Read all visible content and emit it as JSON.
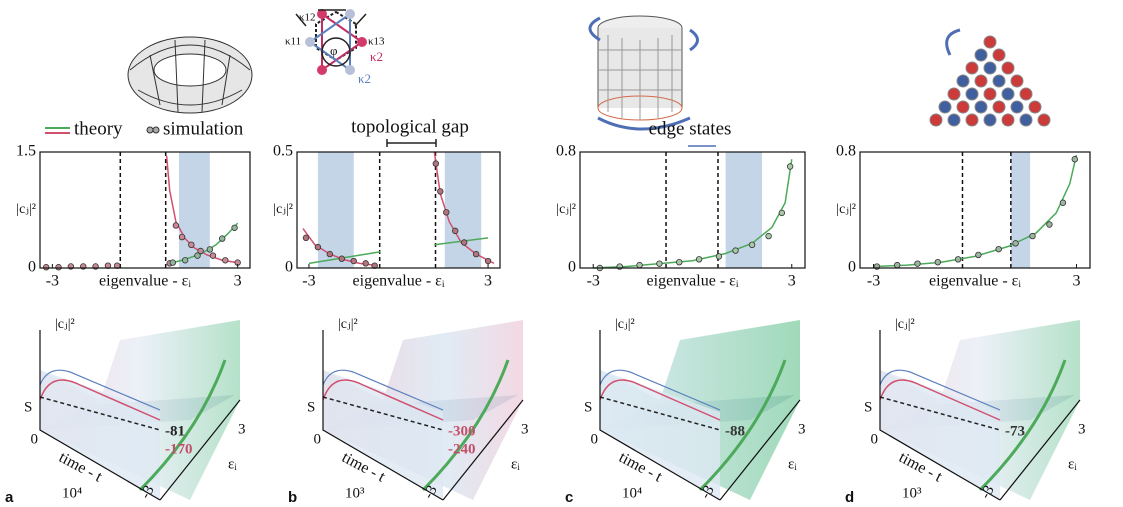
{
  "legend": {
    "theory": "theory",
    "simulation": "simulation"
  },
  "annotations": {
    "gap": "topological gap",
    "edge": "edge states"
  },
  "diagram_labels": {
    "k12": "κ12",
    "k11": "κ11",
    "k13": "κ13",
    "k2a": "κ2",
    "k2b": "κ2",
    "phi": "φ"
  },
  "chart_data": [
    {
      "type": "scatter",
      "x_label": "eigenvalue - εᵢ",
      "y_label": "|cⱼ|²",
      "xlim": [
        -3.4,
        3.4
      ],
      "ylim": [
        0,
        1.5
      ],
      "xticks": [
        -3,
        3
      ],
      "yticks": [
        0,
        1.5
      ],
      "vlines": [
        -0.8,
        0.67
      ],
      "bands": [
        [
          1.1,
          2.1
        ]
      ],
      "series": [
        {
          "kind": "line",
          "color": "#d2506f",
          "x": [
            0.7,
            0.8,
            1.0,
            1.3,
            1.6,
            2.0,
            2.5,
            3.0
          ],
          "values": [
            1.45,
            1.0,
            0.6,
            0.38,
            0.26,
            0.17,
            0.1,
            0.07
          ]
        },
        {
          "kind": "line",
          "color": "#4caa5a",
          "x": [
            0.7,
            1.2,
            1.8,
            2.3,
            2.7,
            3.0
          ],
          "values": [
            0.05,
            0.1,
            0.18,
            0.3,
            0.45,
            0.58
          ]
        },
        {
          "kind": "points",
          "color": "#c98a95",
          "x": [
            -3.2,
            -2.8,
            -2.4,
            -2.0,
            -1.6,
            -1.2,
            -0.9,
            0.8,
            1.0,
            1.2,
            1.5,
            1.8,
            2.2,
            2.6,
            3.0
          ],
          "values": [
            0.01,
            0.01,
            0.02,
            0.02,
            0.02,
            0.03,
            0.03,
            0.06,
            0.55,
            0.4,
            0.3,
            0.22,
            0.16,
            0.1,
            0.07
          ]
        },
        {
          "kind": "points",
          "color": "#8fb89a",
          "x": [
            0.9,
            1.3,
            1.7,
            2.1,
            2.5,
            2.9
          ],
          "values": [
            0.07,
            0.1,
            0.16,
            0.24,
            0.38,
            0.52
          ]
        }
      ]
    },
    {
      "type": "scatter",
      "x_label": "eigenvalue - εᵢ",
      "y_label": "|cⱼ|²",
      "xlim": [
        -3.4,
        3.4
      ],
      "ylim": [
        0,
        0.5
      ],
      "xticks": [
        -3,
        3
      ],
      "yticks": [
        0,
        0.5
      ],
      "vlines": [
        -0.63,
        1.24
      ],
      "bands": [
        [
          -2.7,
          -1.5
        ],
        [
          1.55,
          2.77
        ]
      ],
      "series": [
        {
          "kind": "line",
          "color": "#d2506f",
          "x": [
            -3.2,
            -2.8,
            -2.3,
            -1.8,
            -1.3,
            -0.7
          ],
          "values": [
            0.17,
            0.1,
            0.06,
            0.035,
            0.02,
            0.01
          ]
        },
        {
          "kind": "line",
          "color": "#d2506f",
          "x": [
            1.2,
            1.4,
            1.7,
            2.1,
            2.6,
            3.2
          ],
          "values": [
            0.5,
            0.32,
            0.2,
            0.11,
            0.06,
            0.02
          ]
        },
        {
          "kind": "line",
          "color": "#4caa5a",
          "x": [
            -3.0,
            -0.6
          ],
          "values": [
            0.02,
            0.07
          ]
        },
        {
          "kind": "line",
          "color": "#4caa5a",
          "x": [
            1.2,
            3.0
          ],
          "values": [
            0.1,
            0.13
          ]
        },
        {
          "kind": "points",
          "color": "#b3747f",
          "x": [
            -3.1,
            -2.7,
            -2.3,
            -1.9,
            -1.5,
            -1.1,
            -0.8,
            1.25,
            1.4,
            1.6,
            1.9,
            2.2,
            2.6,
            3.0
          ],
          "values": [
            0.13,
            0.09,
            0.06,
            0.04,
            0.03,
            0.02,
            0.01,
            0.45,
            0.33,
            0.24,
            0.16,
            0.11,
            0.06,
            0.03
          ]
        }
      ]
    },
    {
      "type": "scatter",
      "x_label": "eigenvalue - εᵢ",
      "y_label": "|cⱼ|²",
      "xlim": [
        -3.4,
        3.4
      ],
      "ylim": [
        0,
        0.8
      ],
      "xticks": [
        -3,
        3
      ],
      "yticks": [
        0,
        0.8
      ],
      "vlines": [
        -0.8,
        0.77
      ],
      "bands": [
        [
          1.0,
          2.1
        ]
      ],
      "series": [
        {
          "kind": "line",
          "color": "#4caa5a",
          "x": [
            -3.0,
            -2.0,
            -1.0,
            0.0,
            1.0,
            1.8,
            2.4,
            2.8,
            3.0
          ],
          "values": [
            0.0,
            0.01,
            0.03,
            0.05,
            0.1,
            0.17,
            0.28,
            0.45,
            0.75
          ]
        },
        {
          "kind": "points",
          "color": "#a9c7a9",
          "x": [
            -2.8,
            -2.2,
            -1.6,
            -1.0,
            -0.4,
            0.2,
            0.8,
            1.3,
            1.8,
            2.3,
            2.7,
            2.95
          ],
          "values": [
            0.0,
            0.01,
            0.02,
            0.03,
            0.04,
            0.06,
            0.08,
            0.12,
            0.16,
            0.22,
            0.38,
            0.7
          ]
        }
      ]
    },
    {
      "type": "scatter",
      "x_label": "eigenvalue - εᵢ",
      "y_label": "|cⱼ|²",
      "xlim": [
        -3.4,
        3.4
      ],
      "ylim": [
        0,
        0.8
      ],
      "xticks": [
        -3,
        3
      ],
      "yticks": [
        0,
        0.8
      ],
      "vlines": [
        -0.37,
        1.06
      ],
      "bands": [
        [
          1.06,
          1.63
        ]
      ],
      "series": [
        {
          "kind": "line",
          "color": "#4caa5a",
          "x": [
            -3.0,
            -2.0,
            -1.0,
            0.0,
            1.0,
            1.8,
            2.4,
            2.8,
            3.0
          ],
          "values": [
            0.01,
            0.02,
            0.04,
            0.08,
            0.15,
            0.24,
            0.38,
            0.58,
            0.78
          ]
        },
        {
          "kind": "points",
          "color": "#9bb59f",
          "x": [
            -2.9,
            -2.3,
            -1.7,
            -1.1,
            -0.5,
            0.1,
            0.7,
            1.2,
            1.7,
            2.2,
            2.6,
            2.95
          ],
          "values": [
            0.01,
            0.02,
            0.03,
            0.04,
            0.06,
            0.09,
            0.13,
            0.17,
            0.22,
            0.3,
            0.45,
            0.75
          ]
        }
      ]
    }
  ],
  "surfaces": [
    {
      "letter": "a",
      "y_label": "|cⱼ|²",
      "s_label": "S",
      "t0": "0",
      "x_label": "time - t",
      "t_end": "10⁴",
      "e_label": "εᵢ",
      "e_max": "3",
      "e_min": "-3",
      "values": [
        "-81",
        "-170"
      ],
      "value_colors": [
        "#222",
        "#c2506a"
      ]
    },
    {
      "letter": "b",
      "y_label": "|cⱼ|²",
      "s_label": "S",
      "t0": "0",
      "x_label": "time - t",
      "t_end": "10³",
      "e_label": "εᵢ",
      "e_max": "3",
      "e_min": "-3",
      "values": [
        "-300",
        "-240"
      ],
      "value_colors": [
        "#c2506a",
        "#c2506a"
      ]
    },
    {
      "letter": "c",
      "y_label": "|cⱼ|²",
      "s_label": "S",
      "t0": "0",
      "x_label": "time - t",
      "t_end": "10⁴",
      "e_label": "εᵢ",
      "e_max": "3",
      "e_min": "-3",
      "values": [
        "-88"
      ],
      "value_colors": [
        "#333"
      ]
    },
    {
      "letter": "d",
      "y_label": "|cⱼ|²",
      "s_label": "S",
      "t0": "0",
      "x_label": "time - t",
      "t_end": "10³",
      "e_label": "εᵢ",
      "e_max": "3",
      "e_min": "-3",
      "values": [
        "-73"
      ],
      "value_colors": [
        "#333"
      ]
    }
  ]
}
